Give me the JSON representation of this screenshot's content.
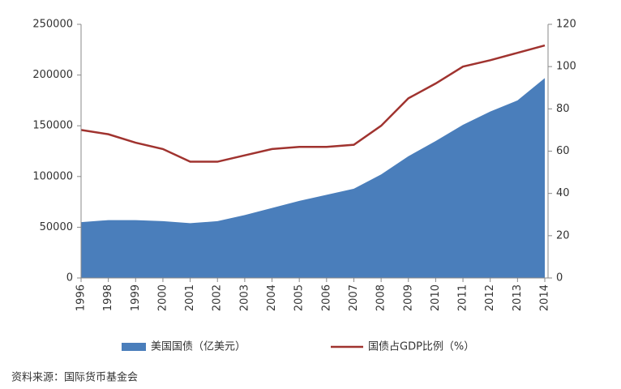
{
  "chart_data": {
    "type": "area-line",
    "categories": [
      "1996",
      "1998",
      "1999",
      "2000",
      "2001",
      "2002",
      "2003",
      "2004",
      "2005",
      "2006",
      "2007",
      "2008",
      "2009",
      "2010",
      "2011",
      "2012",
      "2013",
      "2014"
    ],
    "series": [
      {
        "name": "美国国债（亿美元）",
        "color": "#4a7ebb",
        "kind": "area",
        "values": [
          55000,
          57000,
          57000,
          56000,
          54000,
          56000,
          62000,
          69000,
          76000,
          82000,
          88000,
          102000,
          120000,
          135000,
          151000,
          164000,
          175000,
          197000
        ]
      },
      {
        "name": "国债占GDP比例（%）",
        "color": "#a0332f",
        "kind": "line",
        "axis": "y2",
        "values": [
          70,
          68,
          64,
          61,
          55,
          55,
          58,
          61,
          62,
          62,
          63,
          72,
          85,
          92,
          100,
          103,
          106.5,
          110
        ]
      }
    ],
    "ylim": [
      0,
      250000
    ],
    "yticks": [
      0,
      50000,
      100000,
      150000,
      200000,
      250000
    ],
    "y2lim": [
      0,
      120
    ],
    "y2ticks": [
      0,
      20,
      40,
      60,
      80,
      100,
      120
    ],
    "grid": false,
    "legend": "bottom",
    "source": "资料来源：国际货币基金会"
  }
}
